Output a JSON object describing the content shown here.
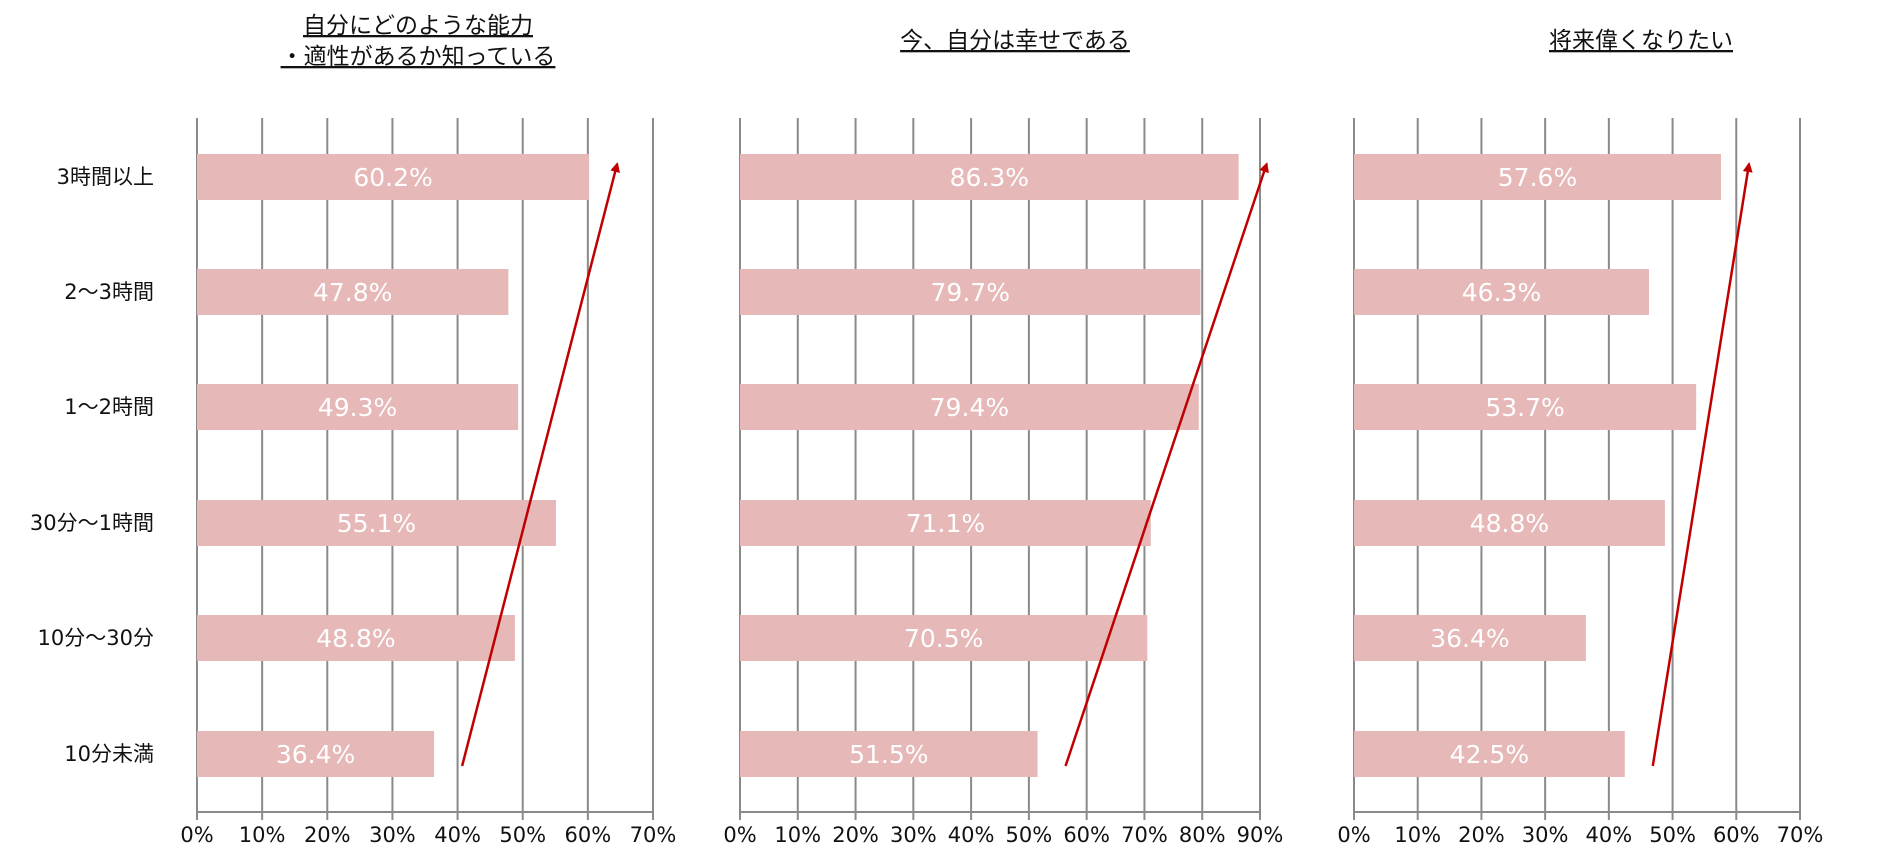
{
  "chart_data": [
    {
      "type": "bar",
      "orientation": "horizontal",
      "title_lines": [
        "自分にどのような能力",
        "・適性があるか知っている"
      ],
      "categories": [
        "3時間以上",
        "2～3時間",
        "1～2時間",
        "30分～1時間",
        "10分～30分",
        "10分未満"
      ],
      "values": [
        60.2,
        47.8,
        49.3,
        55.1,
        48.8,
        36.4
      ],
      "value_labels": [
        "60.2%",
        "47.8%",
        "49.3%",
        "55.1%",
        "48.8%",
        "36.4%"
      ],
      "xlim": [
        0,
        70
      ],
      "xticks": [
        "0%",
        "10%",
        "20%",
        "30%",
        "40%",
        "50%",
        "60%",
        "70%"
      ],
      "grid": true,
      "trend_arrow": true
    },
    {
      "type": "bar",
      "orientation": "horizontal",
      "title_lines": [
        "今、自分は幸せである"
      ],
      "categories": [
        "3時間以上",
        "2～3時間",
        "1～2時間",
        "30分～1時間",
        "10分～30分",
        "10分未満"
      ],
      "values": [
        86.3,
        79.7,
        79.4,
        71.1,
        70.5,
        51.5
      ],
      "value_labels": [
        "86.3%",
        "79.7%",
        "79.4%",
        "71.1%",
        "70.5%",
        "51.5%"
      ],
      "xlim": [
        0,
        90
      ],
      "xticks": [
        "0%",
        "10%",
        "20%",
        "30%",
        "40%",
        "50%",
        "60%",
        "70%",
        "80%",
        "90%"
      ],
      "grid": true,
      "trend_arrow": true
    },
    {
      "type": "bar",
      "orientation": "horizontal",
      "title_lines": [
        "将来偉くなりたい"
      ],
      "categories": [
        "3時間以上",
        "2～3時間",
        "1～2時間",
        "30分～1時間",
        "10分～30分",
        "10分未満"
      ],
      "values": [
        57.6,
        46.3,
        53.7,
        48.8,
        36.4,
        42.5
      ],
      "value_labels": [
        "57.6%",
        "46.3%",
        "53.7%",
        "48.8%",
        "36.4%",
        "42.5%"
      ],
      "xlim": [
        0,
        70
      ],
      "xticks": [
        "0%",
        "10%",
        "20%",
        "30%",
        "40%",
        "50%",
        "60%",
        "70%"
      ],
      "grid": true,
      "trend_arrow": true
    }
  ],
  "colors": {
    "bar": "#e6b8b8",
    "grid": "#8a8a8a",
    "arrow": "#c00000",
    "value_text": "#ffffff"
  }
}
